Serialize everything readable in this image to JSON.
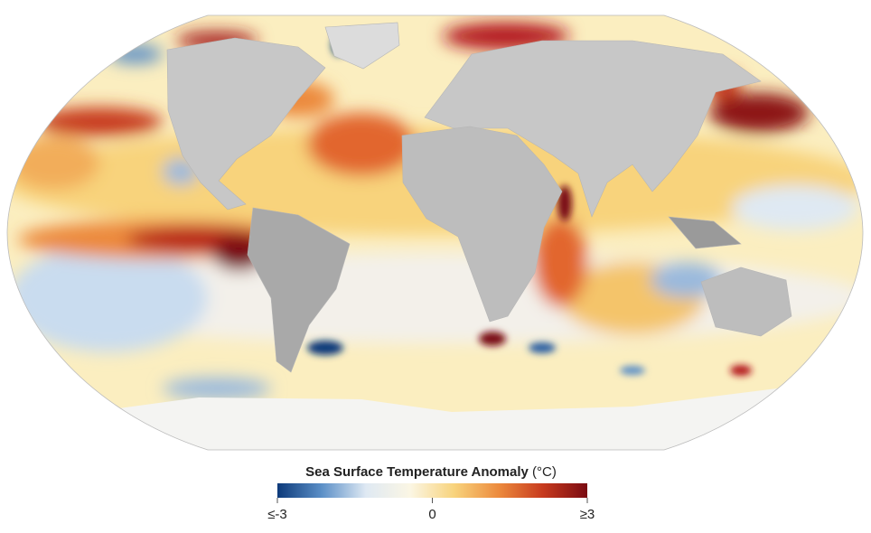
{
  "map": {
    "legend": {
      "title": "Sea Surface Temperature Anomaly",
      "unit": "(°C)",
      "range": [
        -3,
        3
      ],
      "ticks": [
        {
          "value": -3,
          "label": "≤-3"
        },
        0,
        {
          "value": 3,
          "label": "≥3"
        }
      ],
      "colors": [
        "#0d3a7a",
        "#5b8fc7",
        "#dfe9f3",
        "#fbf6e4",
        "#f8d37c",
        "#ec8a3d",
        "#c73a1e",
        "#7a0b12"
      ]
    }
  }
}
